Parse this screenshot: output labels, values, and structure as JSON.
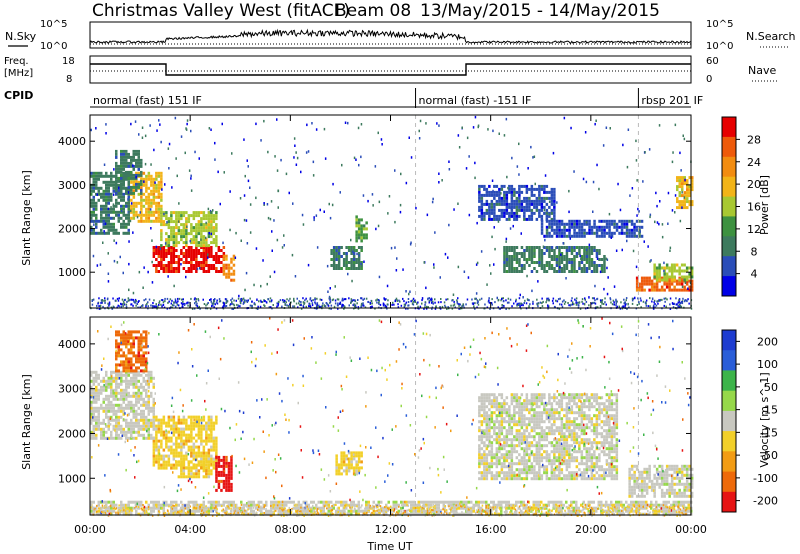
{
  "header": {
    "title": "Christmas Valley West (fitACF)",
    "beam": "Beam 08",
    "date_range": "13/May/2015 - 14/May/2015"
  },
  "top_panels": {
    "nsky_label": "N.Sky",
    "nsky_ticks": [
      "10^5",
      "10^0"
    ],
    "nsearch_label": "N.Search",
    "nsearch_ticks": [
      "10^5",
      "10^0"
    ],
    "freq_label_1": "Freq.",
    "freq_label_2": "[MHz]",
    "freq_ticks": [
      "18",
      "8"
    ],
    "nave_label": "Nave",
    "nave_ticks": [
      "60",
      "0"
    ],
    "cpid_label": "CPID",
    "cpid_segments": [
      {
        "label": "normal (fast) 151 IF",
        "start_hour": 0,
        "end_hour": 13
      },
      {
        "label": "normal (fast) -151 IF",
        "start_hour": 13,
        "end_hour": 21.9
      },
      {
        "label": "rbsp 201 IF",
        "start_hour": 21.9,
        "end_hour": 24
      }
    ]
  },
  "colors": {
    "power_scale": [
      "#0000e6",
      "#2a4db8",
      "#3d7a5e",
      "#3d9140",
      "#a8c832",
      "#f2b418",
      "#f28c10",
      "#ee5a0a",
      "#e60000"
    ],
    "velocity_scale": [
      "#1e3cd0",
      "#2a5ed8",
      "#3cb44a",
      "#96d84a",
      "#c8c8c0",
      "#f2d02a",
      "#f29c14",
      "#ee6a0a",
      "#e61414"
    ]
  },
  "chart_data": [
    {
      "type": "heatmap",
      "name": "power",
      "xlabel": "Time UT",
      "ylabel": "Slant Range [km]",
      "xlim": [
        0,
        24
      ],
      "ylim": [
        180,
        4600
      ],
      "x_ticks": [
        "00:00",
        "04:00",
        "08:00",
        "12:00",
        "16:00",
        "20:00",
        "00:00"
      ],
      "y_ticks": [
        1000,
        2000,
        3000,
        4000
      ],
      "colorbar": {
        "label": "Power [dB]",
        "ticks": [
          4,
          8,
          12,
          16,
          20,
          24,
          28
        ],
        "range": [
          0,
          30
        ]
      },
      "regions": [
        {
          "t0": 2.5,
          "t1": 5.3,
          "r0": 1050,
          "r1": 1600,
          "value": 27
        },
        {
          "t0": 2.8,
          "t1": 5.0,
          "r0": 1600,
          "r1": 2400,
          "value": 16
        },
        {
          "t0": 1.5,
          "t1": 2.8,
          "r0": 2200,
          "r1": 3300,
          "value": 18
        },
        {
          "t0": 0.0,
          "t1": 1.5,
          "r0": 1900,
          "r1": 3300,
          "value": 9
        },
        {
          "t0": 1.0,
          "t1": 2.0,
          "r0": 2800,
          "r1": 3800,
          "value": 8
        },
        {
          "t0": 5.3,
          "t1": 5.7,
          "r0": 800,
          "r1": 1400,
          "value": 22
        },
        {
          "t0": 9.6,
          "t1": 10.8,
          "r0": 1100,
          "r1": 1600,
          "value": 8
        },
        {
          "t0": 10.6,
          "t1": 11.0,
          "r0": 1700,
          "r1": 2300,
          "value": 10
        },
        {
          "t0": 15.5,
          "t1": 18.5,
          "r0": 2200,
          "r1": 3000,
          "value": 6
        },
        {
          "t0": 16.5,
          "t1": 20.5,
          "r0": 1000,
          "r1": 1600,
          "value": 8
        },
        {
          "t0": 18.0,
          "t1": 22.0,
          "r0": 1800,
          "r1": 2200,
          "value": 6
        },
        {
          "t0": 21.8,
          "t1": 24.0,
          "r0": 600,
          "r1": 900,
          "value": 26
        },
        {
          "t0": 22.5,
          "t1": 24.0,
          "r0": 850,
          "r1": 1200,
          "value": 16
        },
        {
          "t0": 23.4,
          "t1": 24.0,
          "r0": 2500,
          "r1": 3200,
          "value": 18
        }
      ]
    },
    {
      "type": "heatmap",
      "name": "velocity",
      "xlabel": "Time UT",
      "ylabel": "Slant Range [km]",
      "xlim": [
        0,
        24
      ],
      "ylim": [
        180,
        4600
      ],
      "x_ticks": [
        "00:00",
        "04:00",
        "08:00",
        "12:00",
        "16:00",
        "20:00",
        "00:00"
      ],
      "y_ticks": [
        1000,
        2000,
        3000,
        4000
      ],
      "colorbar": {
        "label": "Velocity [m s^-1]",
        "ticks": [
          "200",
          "100",
          "50",
          "15",
          "-15",
          "-50",
          "-100",
          "-200"
        ],
        "range": [
          -250,
          250
        ]
      },
      "regions": [
        {
          "t0": 2.5,
          "t1": 5.0,
          "r0": 1200,
          "r1": 2400,
          "value": -40
        },
        {
          "t0": 3.5,
          "t1": 4.8,
          "r0": 1050,
          "r1": 1400,
          "value": -80
        },
        {
          "t0": 5.0,
          "t1": 5.6,
          "r0": 750,
          "r1": 1500,
          "value": -220
        },
        {
          "t0": 0.0,
          "t1": 2.5,
          "r0": 1900,
          "r1": 3400,
          "value": 0
        },
        {
          "t0": 1.0,
          "t1": 2.2,
          "r0": 3400,
          "r1": 4300,
          "value": -180
        },
        {
          "t0": 9.8,
          "t1": 10.8,
          "r0": 1100,
          "r1": 1600,
          "value": -60
        },
        {
          "t0": 15.5,
          "t1": 21.0,
          "r0": 1000,
          "r1": 2900,
          "value": 0
        },
        {
          "t0": 21.5,
          "t1": 24.0,
          "r0": 600,
          "r1": 1300,
          "value": 0
        },
        {
          "t0": 0.0,
          "t1": 24.0,
          "r0": 180,
          "r1": 500,
          "value": 20
        }
      ]
    }
  ]
}
